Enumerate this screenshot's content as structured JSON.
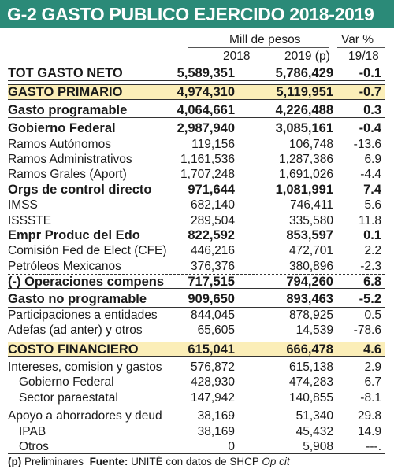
{
  "title": "G-2 GASTO PUBLICO EJERCIDO 2018-2019",
  "header": {
    "units": "Mill de pesos",
    "var_label": "Var %",
    "col_2018": "2018",
    "col_2019": "2019 (p)",
    "col_var": "19/18"
  },
  "rows": [
    {
      "label": "TOT GASTO NETO",
      "v2018": "5,589,351",
      "v2019": "5,786,429",
      "var": "-0.1"
    },
    {
      "label": "GASTO PRIMARIO",
      "v2018": "4,974,310",
      "v2019": "5,119,951",
      "var": "-0.7"
    },
    {
      "label": "Gasto programable",
      "v2018": "4,064,661",
      "v2019": "4,226,488",
      "var": "0.3"
    },
    {
      "label": "Gobierno Federal",
      "v2018": "2,987,940",
      "v2019": "3,085,161",
      "var": "-0.4"
    },
    {
      "label": "Ramos Autónomos",
      "v2018": "119,156",
      "v2019": "106,748",
      "var": "-13.6"
    },
    {
      "label": "Ramos Administrativos",
      "v2018": "1,161,536",
      "v2019": "1,287,386",
      "var": "6.9"
    },
    {
      "label": "Ramos Grales (Aport)",
      "v2018": "1,707,248",
      "v2019": "1,691,026",
      "var": "-4.4"
    },
    {
      "label": "Orgs de control directo",
      "v2018": "971,644",
      "v2019": "1,081,991",
      "var": "7.4"
    },
    {
      "label": "IMSS",
      "v2018": "682,140",
      "v2019": "746,411",
      "var": "5.6"
    },
    {
      "label": "ISSSTE",
      "v2018": "289,504",
      "v2019": "335,580",
      "var": "11.8"
    },
    {
      "label": "Empr Produc del Edo",
      "v2018": "822,592",
      "v2019": "853,597",
      "var": "0.1"
    },
    {
      "label": "Comisión Fed de Elect (CFE)",
      "v2018": "446,216",
      "v2019": "472,701",
      "var": "2.2"
    },
    {
      "label": "Petróleos Mexicanos",
      "v2018": "376,376",
      "v2019": "380,896",
      "var": "-2.3"
    },
    {
      "label": "(-) Operaciones compens",
      "v2018": "717,515",
      "v2019": "794,260",
      "var": "6.8"
    },
    {
      "label": "Gasto no programable",
      "v2018": "909,650",
      "v2019": "893,463",
      "var": "-5.2"
    },
    {
      "label": "Participaciones a entidades",
      "v2018": "844,045",
      "v2019": "878,925",
      "var": "0.5"
    },
    {
      "label": "Adefas (ad anter) y otros",
      "v2018": "65,605",
      "v2019": "14,539",
      "var": "-78.6"
    },
    {
      "label": "COSTO FINANCIERO",
      "v2018": "615,041",
      "v2019": "666,478",
      "var": "4.6"
    },
    {
      "label": "Intereses, comision y gastos",
      "v2018": "576,872",
      "v2019": "615,138",
      "var": "2.9"
    },
    {
      "label": "Gobierno Federal",
      "v2018": "428,930",
      "v2019": "474,283",
      "var": "6.7"
    },
    {
      "label": "Sector paraestatal",
      "v2018": "147,942",
      "v2019": "140,855",
      "var": "-8.1"
    },
    {
      "label": "Apoyo a ahorradores y deud",
      "v2018": "38,169",
      "v2019": "51,340",
      "var": "29.8"
    },
    {
      "label": "IPAB",
      "v2018": "38,169",
      "v2019": "45,432",
      "var": "14.9"
    },
    {
      "label": "Otros",
      "v2018": "0",
      "v2019": "5,908",
      "var": "---."
    }
  ],
  "footer": {
    "p_mark": "(p)",
    "p_text": "Preliminares",
    "source_label": "Fuente:",
    "source_text": "UNITÉ con datos de SHCP",
    "source_tail": "Op cit"
  }
}
